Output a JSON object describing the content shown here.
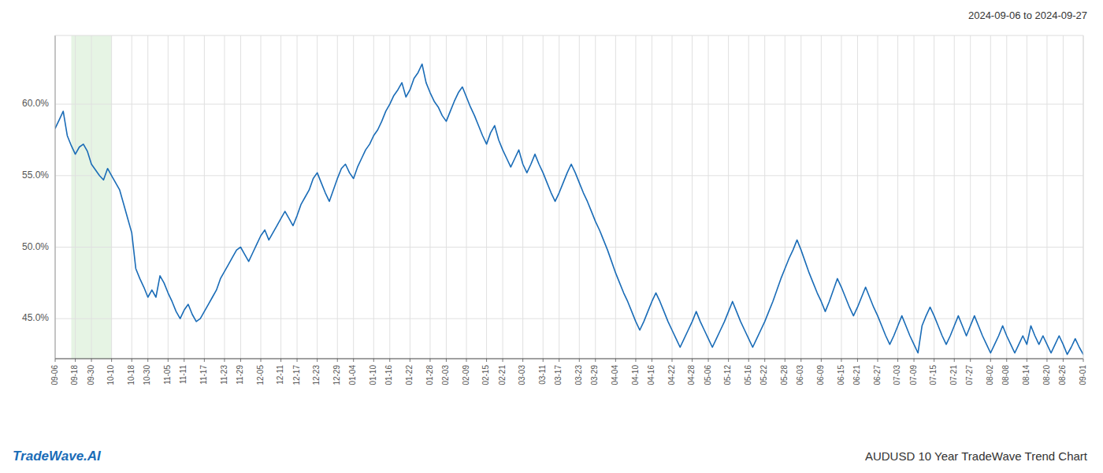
{
  "chart_data": {
    "type": "line",
    "title": "AUDUSD 10 Year TradeWave Trend Chart",
    "subtitle": "2024-09-06 to 2024-09-27",
    "annotations": [
      {
        "text": "TradeWave.AI",
        "color": "#1a6cb7"
      }
    ],
    "color": "#1a6cb7",
    "grid": true,
    "highlight": {
      "from": 4,
      "to": 14,
      "color": "#d6ecd2"
    },
    "ylim": [
      0.422,
      0.648
    ],
    "yticks": [
      {
        "value": 0.45,
        "label": "45.0%"
      },
      {
        "value": 0.5,
        "label": "50.0%"
      },
      {
        "value": 0.55,
        "label": "55.0%"
      },
      {
        "value": 0.6,
        "label": "60.0%"
      }
    ],
    "categories": [
      "09-06",
      null,
      null,
      null,
      null,
      "09-18",
      null,
      null,
      null,
      "09-30",
      null,
      null,
      null,
      null,
      "10-10",
      null,
      null,
      null,
      null,
      "10-18",
      null,
      null,
      null,
      "10-30",
      null,
      null,
      null,
      null,
      "11-05",
      null,
      null,
      null,
      "11-11",
      null,
      null,
      null,
      null,
      "11-17",
      null,
      null,
      null,
      null,
      "11-23",
      null,
      null,
      null,
      "11-29",
      null,
      null,
      null,
      null,
      "12-05",
      null,
      null,
      null,
      null,
      "12-11",
      null,
      null,
      null,
      "12-17",
      null,
      null,
      null,
      null,
      "12-23",
      null,
      null,
      null,
      null,
      "12-29",
      null,
      null,
      null,
      "01-04",
      null,
      null,
      null,
      null,
      "01-10",
      null,
      null,
      null,
      "01-16",
      null,
      null,
      null,
      null,
      "01-22",
      null,
      null,
      null,
      null,
      "01-28",
      null,
      null,
      null,
      "02-03",
      null,
      null,
      null,
      null,
      "02-09",
      null,
      null,
      null,
      null,
      "02-15",
      null,
      null,
      null,
      "02-21",
      null,
      null,
      null,
      null,
      "03-03",
      null,
      null,
      null,
      null,
      "03-11",
      null,
      null,
      null,
      "03-17",
      null,
      null,
      null,
      null,
      "03-23",
      null,
      null,
      null,
      "03-29",
      null,
      null,
      null,
      null,
      "04-04",
      null,
      null,
      null,
      null,
      "04-10",
      null,
      null,
      null,
      "04-16",
      null,
      null,
      null,
      null,
      "04-22",
      null,
      null,
      null,
      null,
      "04-28",
      null,
      null,
      null,
      "05-06",
      null,
      null,
      null,
      null,
      "05-12",
      null,
      null,
      null,
      null,
      "05-16",
      null,
      null,
      null,
      "05-22",
      null,
      null,
      null,
      null,
      "05-28",
      null,
      null,
      null,
      "06-03",
      null,
      null,
      null,
      null,
      "06-09",
      null,
      null,
      null,
      null,
      "06-15",
      null,
      null,
      null,
      "06-21",
      null,
      null,
      null,
      null,
      "06-27",
      null,
      null,
      null,
      null,
      "07-03",
      null,
      null,
      null,
      "07-09",
      null,
      null,
      null,
      null,
      "07-15",
      null,
      null,
      null,
      null,
      "07-21",
      null,
      null,
      null,
      "07-27",
      null,
      null,
      null,
      null,
      "08-02",
      null,
      null,
      null,
      "08-08",
      null,
      null,
      null,
      null,
      "08-14",
      null,
      null,
      null,
      null,
      "08-20",
      null,
      null,
      null,
      "08-26",
      null,
      null,
      null,
      null,
      "09-01"
    ],
    "values": [
      0.583,
      0.589,
      0.595,
      0.578,
      0.571,
      0.565,
      0.57,
      0.572,
      0.567,
      0.558,
      0.554,
      0.55,
      0.547,
      0.555,
      0.55,
      0.545,
      0.54,
      0.53,
      0.52,
      0.51,
      0.485,
      0.478,
      0.472,
      0.465,
      0.47,
      0.465,
      0.48,
      0.475,
      0.468,
      0.462,
      0.455,
      0.45,
      0.456,
      0.46,
      0.453,
      0.448,
      0.45,
      0.455,
      0.46,
      0.465,
      0.47,
      0.478,
      0.483,
      0.488,
      0.493,
      0.498,
      0.5,
      0.495,
      0.49,
      0.496,
      0.502,
      0.508,
      0.512,
      0.505,
      0.51,
      0.515,
      0.52,
      0.525,
      0.52,
      0.515,
      0.522,
      0.53,
      0.535,
      0.54,
      0.548,
      0.552,
      0.545,
      0.538,
      0.532,
      0.54,
      0.548,
      0.555,
      0.558,
      0.552,
      0.548,
      0.556,
      0.562,
      0.568,
      0.572,
      0.578,
      0.582,
      0.588,
      0.595,
      0.6,
      0.606,
      0.61,
      0.615,
      0.605,
      0.61,
      0.618,
      0.622,
      0.628,
      0.615,
      0.608,
      0.602,
      0.598,
      0.592,
      0.588,
      0.595,
      0.602,
      0.608,
      0.612,
      0.605,
      0.598,
      0.592,
      0.585,
      0.578,
      0.572,
      0.58,
      0.585,
      0.575,
      0.568,
      0.562,
      0.556,
      0.562,
      0.568,
      0.558,
      0.552,
      0.558,
      0.565,
      0.558,
      0.552,
      0.545,
      0.538,
      0.532,
      0.538,
      0.545,
      0.552,
      0.558,
      0.552,
      0.545,
      0.538,
      0.532,
      0.525,
      0.518,
      0.512,
      0.505,
      0.498,
      0.49,
      0.482,
      0.475,
      0.468,
      0.462,
      0.455,
      0.448,
      0.442,
      0.448,
      0.455,
      0.462,
      0.468,
      0.462,
      0.455,
      0.448,
      0.442,
      0.436,
      0.43,
      0.436,
      0.442,
      0.448,
      0.455,
      0.448,
      0.442,
      0.436,
      0.43,
      0.436,
      0.442,
      0.448,
      0.455,
      0.462,
      0.455,
      0.448,
      0.442,
      0.436,
      0.43,
      0.436,
      0.442,
      0.448,
      0.455,
      0.462,
      0.47,
      0.478,
      0.485,
      0.492,
      0.498,
      0.505,
      0.498,
      0.49,
      0.482,
      0.475,
      0.468,
      0.462,
      0.455,
      0.462,
      0.47,
      0.478,
      0.472,
      0.465,
      0.458,
      0.452,
      0.458,
      0.465,
      0.472,
      0.465,
      0.458,
      0.452,
      0.445,
      0.438,
      0.432,
      0.438,
      0.445,
      0.452,
      0.445,
      0.438,
      0.432,
      0.426,
      0.445,
      0.452,
      0.458,
      0.452,
      0.445,
      0.438,
      0.432,
      0.438,
      0.445,
      0.452,
      0.445,
      0.438,
      0.445,
      0.452,
      0.445,
      0.438,
      0.432,
      0.426,
      0.432,
      0.438,
      0.445,
      0.438,
      0.432,
      0.426,
      0.432,
      0.438,
      0.432,
      0.445,
      0.438,
      0.432,
      0.438,
      0.432,
      0.426,
      0.432,
      0.438,
      0.432,
      0.425,
      0.43,
      0.436,
      0.43,
      0.425
    ]
  }
}
